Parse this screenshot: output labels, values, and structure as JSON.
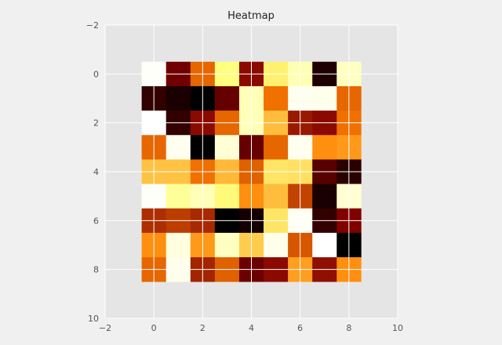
{
  "chart_data": {
    "type": "heatmap",
    "title": "Heatmap",
    "colormap": "afmhot",
    "xlim": [
      -2,
      10
    ],
    "ylim": [
      10,
      -2
    ],
    "xticks": [
      -2,
      0,
      2,
      4,
      6,
      8,
      10
    ],
    "yticks": [
      -2,
      0,
      2,
      4,
      6,
      8,
      10
    ],
    "grid": true,
    "xlabel": "",
    "ylabel": "",
    "values": [
      [
        0.99,
        0.22,
        0.45,
        0.75,
        0.27,
        0.72,
        0.85,
        0.06,
        0.88
      ],
      [
        0.1,
        0.05,
        0.0,
        0.2,
        0.86,
        0.47,
        0.97,
        0.96,
        0.45
      ],
      [
        1.0,
        0.1,
        0.27,
        0.45,
        0.86,
        0.62,
        0.3,
        0.27,
        0.47
      ],
      [
        0.45,
        0.97,
        0.0,
        0.92,
        0.2,
        0.45,
        0.97,
        0.53,
        0.55
      ],
      [
        0.63,
        0.63,
        0.47,
        0.61,
        0.44,
        0.7,
        0.69,
        0.17,
        0.08
      ],
      [
        0.99,
        0.8,
        0.86,
        0.74,
        0.53,
        0.62,
        0.38,
        0.05,
        0.91
      ],
      [
        0.34,
        0.37,
        0.33,
        0.0,
        0.04,
        0.7,
        0.98,
        0.1,
        0.25
      ],
      [
        0.53,
        0.94,
        0.55,
        0.88,
        0.65,
        0.96,
        0.42,
        1.0,
        0.0
      ],
      [
        0.45,
        0.96,
        0.32,
        0.44,
        0.21,
        0.27,
        0.56,
        0.28,
        0.53
      ]
    ]
  }
}
